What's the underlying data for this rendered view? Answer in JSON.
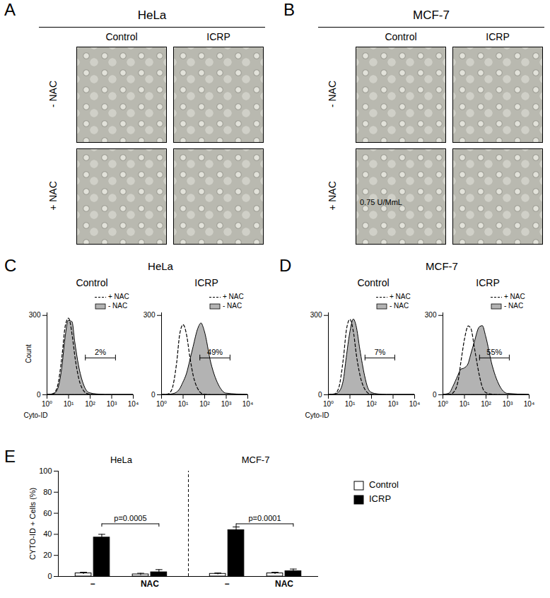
{
  "image_panels": [
    {
      "label": "A",
      "title": "HeLa",
      "columns": [
        "Control",
        "ICRP"
      ],
      "rows": [
        "- NAC",
        "+ NAC"
      ],
      "inset_text": []
    },
    {
      "label": "B",
      "title": "MCF-7",
      "columns": [
        "Control",
        "ICRP"
      ],
      "rows": [
        "- NAC",
        "+ NAC"
      ],
      "inset_text": [
        {
          "row": 1,
          "column": 0,
          "text": "0.75 U/MmL"
        }
      ]
    }
  ],
  "chart_data": [
    {
      "type": "area",
      "panel": "C",
      "header": "HeLa",
      "title": "Control",
      "x_label": "Cyto-ID",
      "y_label": "Count",
      "log": "x",
      "xlim": [
        1,
        10000
      ],
      "xticks": [
        {
          "value": 1,
          "label": "10⁰"
        },
        {
          "value": 10,
          "label": "10¹"
        },
        {
          "value": 100,
          "label": "10²"
        },
        {
          "value": 1000,
          "label": "10³"
        },
        {
          "value": 10000,
          "label": "10⁴"
        }
      ],
      "ylim": [
        0,
        310
      ],
      "yticks": [
        0,
        300
      ],
      "legend": "top-right",
      "x": [
        1,
        2,
        3,
        5,
        7,
        10,
        15,
        20,
        30,
        50,
        70,
        100,
        200,
        500,
        1000,
        10000
      ],
      "series": [
        {
          "name": "+ NAC",
          "type": "line",
          "line_style": "dashed",
          "color": "#000000",
          "values": [
            0,
            5,
            30,
            150,
            260,
            290,
            220,
            140,
            60,
            15,
            5,
            2,
            0,
            0,
            0,
            0
          ]
        },
        {
          "name": "- NAC",
          "type": "area",
          "color": "#b3b3b3",
          "values": [
            0,
            2,
            15,
            100,
            210,
            280,
            275,
            200,
            110,
            40,
            15,
            6,
            2,
            0,
            0,
            0
          ]
        }
      ],
      "gate": [
        60,
        1500
      ],
      "gate_label": "2%"
    },
    {
      "type": "area",
      "title": "ICRP",
      "log": "x",
      "xlim": [
        1,
        10000
      ],
      "xticks": [
        {
          "value": 1,
          "label": "10⁰"
        },
        {
          "value": 10,
          "label": "10¹"
        },
        {
          "value": 100,
          "label": "10²"
        },
        {
          "value": 1000,
          "label": "10³"
        },
        {
          "value": 10000,
          "label": "10⁴"
        }
      ],
      "ylim": [
        0,
        310
      ],
      "yticks": [
        0,
        300
      ],
      "legend": "top-right",
      "x": [
        1,
        2,
        3,
        5,
        7,
        10,
        15,
        20,
        30,
        50,
        70,
        100,
        200,
        500,
        1000,
        10000
      ],
      "series": [
        {
          "name": "+ NAC",
          "type": "line",
          "line_style": "dashed",
          "color": "#000000",
          "values": [
            0,
            3,
            20,
            120,
            230,
            265,
            220,
            150,
            70,
            20,
            6,
            2,
            0,
            0,
            0,
            0
          ]
        },
        {
          "name": "- NAC",
          "type": "area",
          "color": "#b3b3b3",
          "values": [
            0,
            0,
            2,
            8,
            20,
            45,
            80,
            120,
            180,
            250,
            270,
            240,
            120,
            30,
            5,
            0
          ]
        }
      ],
      "gate": [
        60,
        1500
      ],
      "gate_label": "49%"
    },
    {
      "type": "area",
      "panel": "D",
      "header": "MCF-7",
      "title": "Control",
      "x_label": "Cyto-ID",
      "log": "x",
      "xlim": [
        1,
        10000
      ],
      "xticks": [
        {
          "value": 1,
          "label": "10⁰"
        },
        {
          "value": 10,
          "label": "10¹"
        },
        {
          "value": 100,
          "label": "10²"
        },
        {
          "value": 1000,
          "label": "10³"
        },
        {
          "value": 10000,
          "label": "10⁴"
        }
      ],
      "ylim": [
        0,
        310
      ],
      "yticks": [
        0,
        300
      ],
      "legend": "top-right",
      "x": [
        1,
        2,
        3,
        5,
        7,
        10,
        15,
        20,
        30,
        50,
        70,
        100,
        200,
        500,
        1000,
        10000
      ],
      "series": [
        {
          "name": "+ NAC",
          "type": "line",
          "line_style": "dashed",
          "color": "#000000",
          "values": [
            0,
            4,
            25,
            140,
            250,
            285,
            230,
            150,
            70,
            20,
            6,
            2,
            0,
            0,
            0,
            0
          ]
        },
        {
          "name": "- NAC",
          "type": "area",
          "color": "#b3b3b3",
          "values": [
            0,
            1,
            8,
            50,
            140,
            230,
            285,
            260,
            170,
            70,
            25,
            8,
            2,
            0,
            0,
            0
          ]
        }
      ],
      "gate": [
        50,
        1200
      ],
      "gate_label": "7%"
    },
    {
      "type": "area",
      "title": "ICRP",
      "log": "x",
      "xlim": [
        1,
        10000
      ],
      "xticks": [
        {
          "value": 1,
          "label": "10⁰"
        },
        {
          "value": 10,
          "label": "10¹"
        },
        {
          "value": 100,
          "label": "10²"
        },
        {
          "value": 1000,
          "label": "10³"
        },
        {
          "value": 10000,
          "label": "10⁴"
        }
      ],
      "ylim": [
        0,
        310
      ],
      "yticks": [
        0,
        300
      ],
      "legend": "top-right",
      "x": [
        1,
        2,
        3,
        5,
        7,
        10,
        15,
        20,
        30,
        50,
        70,
        100,
        200,
        500,
        1000,
        10000
      ],
      "series": [
        {
          "name": "+ NAC",
          "type": "line",
          "line_style": "dashed",
          "color": "#000000",
          "values": [
            0,
            1,
            8,
            50,
            130,
            210,
            260,
            250,
            170,
            70,
            25,
            8,
            2,
            0,
            0,
            0
          ]
        },
        {
          "name": "- NAC",
          "type": "area",
          "color": "#b3b3b3",
          "values": [
            0,
            5,
            30,
            70,
            95,
            100,
            115,
            150,
            200,
            255,
            260,
            220,
            110,
            25,
            4,
            0
          ]
        }
      ],
      "gate": [
        50,
        1200
      ],
      "gate_label": "55%"
    },
    {
      "type": "bar",
      "panel": "E",
      "y_label": "CYTO-ID + Cells (%)",
      "categories": [
        "−",
        "NAC",
        "−",
        "NAC"
      ],
      "category_groups": [
        "HeLa",
        "HeLa",
        "MCF-7",
        "MCF-7"
      ],
      "ylim": [
        0,
        100
      ],
      "yticks": [
        0,
        20,
        40,
        60,
        80,
        100
      ],
      "legend": "right",
      "series": [
        {
          "name": "Control",
          "color": "#ffffff",
          "values": [
            3,
            2,
            2.5,
            3
          ],
          "errors": [
            1,
            1,
            0.8,
            1
          ]
        },
        {
          "name": "ICRP",
          "color": "#000000",
          "values": [
            37,
            4,
            44,
            5
          ],
          "errors": [
            3,
            2.5,
            3,
            2
          ]
        }
      ],
      "annotations": [
        {
          "text": "p=0.0005",
          "series": "ICRP",
          "from": 0,
          "to": 1,
          "y": 50
        },
        {
          "text": "p=0.0001",
          "series": "ICRP",
          "from": 2,
          "to": 3,
          "y": 50
        }
      ]
    }
  ]
}
